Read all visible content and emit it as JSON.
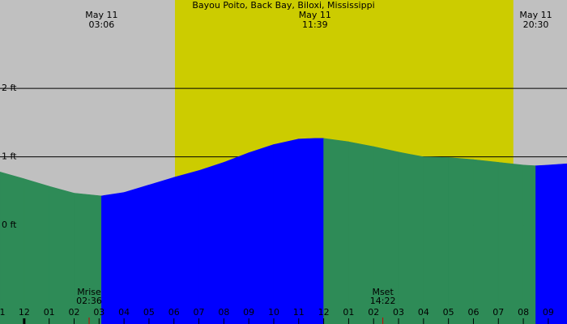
{
  "chart_data": {
    "type": "tide",
    "title": "Bayou Poito, Back Bay, Biloxi, Mississippi",
    "x": [
      -0.97,
      0,
      1,
      2,
      3.1,
      4,
      5,
      6,
      7,
      8,
      9,
      10,
      11,
      11.65,
      12,
      13,
      14,
      15,
      16,
      17,
      18,
      19,
      20,
      20.5,
      21,
      21.75
    ],
    "values": [
      0.78,
      0.68,
      0.57,
      0.47,
      0.43,
      0.48,
      0.59,
      0.7,
      0.8,
      0.92,
      1.06,
      1.18,
      1.26,
      1.27,
      1.27,
      1.22,
      1.15,
      1.07,
      1.0,
      0.99,
      0.96,
      0.92,
      0.88,
      0.87,
      0.88,
      0.9
    ],
    "rising_color": "#0000ff",
    "falling_color": "#2e8b57",
    "background_color": "#c0c0c0",
    "daylight_color": "#cccc00",
    "daylight": [
      6.04,
      19.6
    ],
    "xlim": [
      -0.97,
      21.75
    ],
    "ylim": [
      -1.44,
      3.29
    ],
    "yticks": [
      {
        "value": 0,
        "label": "0 ft"
      },
      {
        "value": 1,
        "label": "1 ft"
      },
      {
        "value": 2,
        "label": "2 ft"
      }
    ],
    "xticks": [
      {
        "value": -1,
        "label": "1"
      },
      {
        "value": 0,
        "label": "12"
      },
      {
        "value": 1,
        "label": "01"
      },
      {
        "value": 2,
        "label": "02"
      },
      {
        "value": 3,
        "label": "03"
      },
      {
        "value": 4,
        "label": "04"
      },
      {
        "value": 5,
        "label": "05"
      },
      {
        "value": 6,
        "label": "06"
      },
      {
        "value": 7,
        "label": "07"
      },
      {
        "value": 8,
        "label": "08"
      },
      {
        "value": 9,
        "label": "09"
      },
      {
        "value": 10,
        "label": "10"
      },
      {
        "value": 11,
        "label": "11"
      },
      {
        "value": 12,
        "label": "12"
      },
      {
        "value": 13,
        "label": "01"
      },
      {
        "value": 14,
        "label": "02"
      },
      {
        "value": 15,
        "label": "03"
      },
      {
        "value": 16,
        "label": "04"
      },
      {
        "value": 17,
        "label": "05"
      },
      {
        "value": 18,
        "label": "06"
      },
      {
        "value": 19,
        "label": "07"
      },
      {
        "value": 20,
        "label": "08"
      },
      {
        "value": 21,
        "label": "09"
      }
    ],
    "extremes": [
      {
        "date": "May 11",
        "time": "03:06",
        "x": 3.1
      },
      {
        "date": "May 11",
        "time": "11:39",
        "x": 11.65
      },
      {
        "date": "May 11",
        "time": "20:30",
        "x": 20.5
      }
    ],
    "moon": [
      {
        "label": "Mrise",
        "time": "02:36",
        "x": 2.6
      },
      {
        "label": "Mset",
        "time": "14:22",
        "x": 14.37
      }
    ]
  }
}
